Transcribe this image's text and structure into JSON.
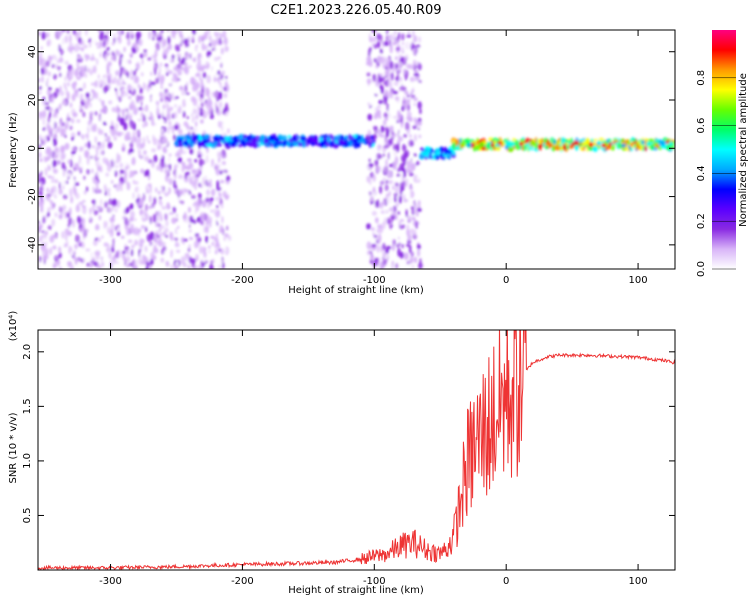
{
  "title": "C2E1.2023.226.05.40.R09",
  "chart_data": [
    {
      "type": "heatmap",
      "xlabel": "Height of straight line (km)",
      "ylabel": "Frequency (Hz)",
      "xlim": [
        -355,
        128
      ],
      "ylim": [
        -50,
        49
      ],
      "xticks": [
        -300,
        -200,
        -100,
        0,
        100
      ],
      "yticks": [
        -40,
        -20,
        0,
        20,
        40
      ],
      "colorbar": {
        "label": "Normalized spectral amplitude",
        "range": [
          0.0,
          1.0
        ],
        "ticks": [
          0.0,
          0.2,
          0.4,
          0.6,
          0.8
        ],
        "colors": [
          "#ffffff",
          "#d8b4f8",
          "#8a2be2",
          "#5a00ff",
          "#0000ff",
          "#00aaff",
          "#00ffff",
          "#00ff66",
          "#66ff00",
          "#ffff00",
          "#ff9900",
          "#ff0000",
          "#ff0080"
        ]
      },
      "features": [
        {
          "x_range": [
            -355,
            -210
          ],
          "freq_range": [
            -50,
            49
          ],
          "amplitude": 0.15
        },
        {
          "x_range": [
            -250,
            -100
          ],
          "freq": 3,
          "amplitude": 0.45
        },
        {
          "x_range": [
            -105,
            -65
          ],
          "freq_range": [
            -50,
            49
          ],
          "amplitude": 0.18
        },
        {
          "x_range": [
            -65,
            -40
          ],
          "freq": -2,
          "amplitude": 0.5
        },
        {
          "x_range": [
            -40,
            128
          ],
          "freq": 1.5,
          "amplitude": 0.85
        }
      ]
    },
    {
      "type": "line",
      "xlabel": "Height of straight line (km)",
      "ylabel": "SNR (10 * v/v)",
      "multiplier": "(x10⁴)",
      "xlim": [
        -355,
        128
      ],
      "ylim": [
        0,
        2.2
      ],
      "xticks": [
        -300,
        -200,
        -100,
        0,
        100
      ],
      "yticks": [
        0.5,
        1.0,
        1.5,
        2.0
      ],
      "ytick_labels": [
        "0.5",
        "1.0",
        "1.5",
        "2.0"
      ],
      "series": [
        {
          "color": "#ee3333",
          "x": [
            -355,
            -300,
            -250,
            -200,
            -160,
            -130,
            -110,
            -90,
            -80,
            -70,
            -60,
            -50,
            -45,
            -40,
            -35,
            -30,
            -25,
            -20,
            -15,
            -10,
            -5,
            0,
            10,
            20,
            30,
            40,
            60,
            80,
            100,
            120,
            128
          ],
          "y": [
            0.02,
            0.02,
            0.03,
            0.05,
            0.06,
            0.07,
            0.1,
            0.15,
            0.22,
            0.25,
            0.18,
            0.15,
            0.2,
            0.3,
            0.6,
            0.95,
            1.1,
            1.2,
            1.3,
            1.4,
            1.5,
            1.6,
            1.75,
            1.9,
            1.95,
            1.97,
            1.97,
            1.96,
            1.95,
            1.92,
            1.9
          ]
        }
      ]
    }
  ]
}
